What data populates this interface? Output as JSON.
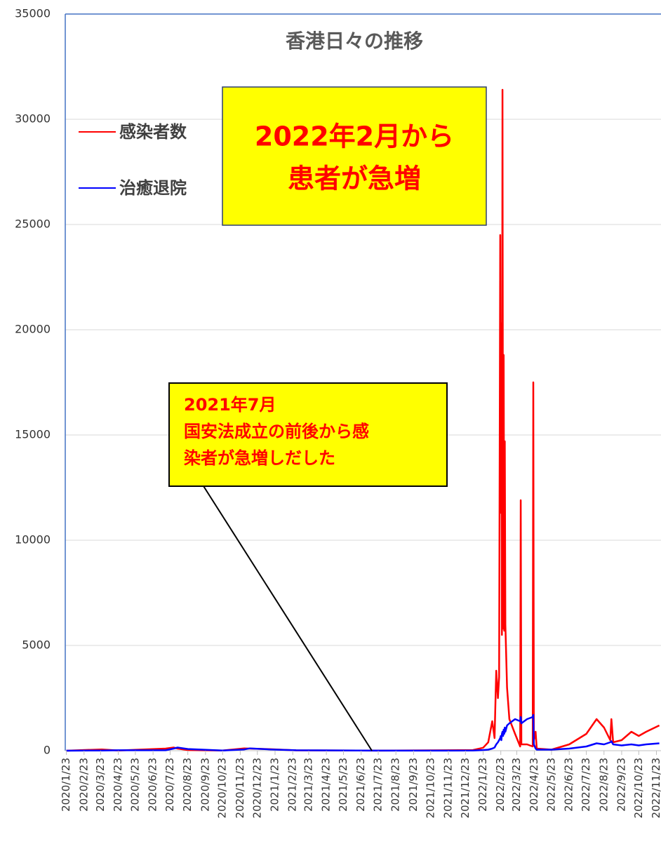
{
  "chart_data": {
    "type": "line",
    "title": "香港日々の推移",
    "x": [
      "2020/1/23",
      "2020/3/25",
      "2020/4/23",
      "2020/7/15",
      "2020/7/29",
      "2020/8/5",
      "2020/8/23",
      "2020/10/23",
      "2020/11/30",
      "2020/12/10",
      "2021/1/15",
      "2021/3/1",
      "2021/7/23",
      "2022/1/5",
      "2022/1/23",
      "2022/2/1",
      "2022/2/8",
      "2022/2/12",
      "2022/2/15",
      "2022/2/18",
      "2022/2/20",
      "2022/2/22",
      "2022/2/23",
      "2022/2/24",
      "2022/2/25",
      "2022/2/26",
      "2022/2/27",
      "2022/2/28",
      "2022/3/1",
      "2022/3/2",
      "2022/3/3",
      "2022/3/6",
      "2022/3/10",
      "2022/3/20",
      "2022/3/29",
      "2022/3/30",
      "2022/3/31",
      "2022/4/10",
      "2022/4/20",
      "2022/4/21",
      "2022/4/22",
      "2022/4/25",
      "2022/4/27",
      "2022/5/23",
      "2022/6/23",
      "2022/7/23",
      "2022/8/10",
      "2022/8/23",
      "2022/9/3",
      "2022/9/5",
      "2022/9/8",
      "2022/9/23",
      "2022/10/10",
      "2022/10/23",
      "2022/11/5",
      "2022/11/28"
    ],
    "series": [
      {
        "name": "感染者数",
        "color": "#ff0000",
        "values": [
          0,
          60,
          5,
          100,
          150,
          100,
          30,
          10,
          110,
          100,
          70,
          15,
          2,
          30,
          140,
          400,
          1400,
          600,
          3800,
          2500,
          3500,
          24500,
          11300,
          20300,
          5500,
          31400,
          5800,
          18800,
          5700,
          14700,
          6000,
          3000,
          1500,
          800,
          200,
          11900,
          300,
          300,
          200,
          17500,
          500,
          900,
          100,
          50,
          300,
          800,
          1500,
          1100,
          500,
          1500,
          400,
          500,
          900,
          700,
          900,
          1200
        ]
      },
      {
        "name": "治癒退院",
        "color": "#0000ff",
        "values": [
          0,
          10,
          20,
          20,
          100,
          150,
          80,
          10,
          60,
          110,
          60,
          20,
          2,
          5,
          30,
          50,
          100,
          150,
          300,
          400,
          500,
          600,
          700,
          500,
          800,
          900,
          700,
          1000,
          800,
          1100,
          900,
          1200,
          1300,
          1500,
          1400,
          1600,
          1300,
          1500,
          1600,
          1700,
          300,
          100,
          50,
          50,
          100,
          200,
          350,
          300,
          400,
          450,
          300,
          250,
          300,
          250,
          300,
          350
        ]
      }
    ],
    "xlim": [
      "2020/1/21",
      "2022/12/1"
    ],
    "xticks": [
      "2020/1/23",
      "2020/2/23",
      "2020/3/23",
      "2020/4/23",
      "2020/5/23",
      "2020/6/23",
      "2020/7/23",
      "2020/8/23",
      "2020/9/23",
      "2020/10/23",
      "2020/11/23",
      "2020/12/23",
      "2021/1/23",
      "2021/2/23",
      "2021/3/23",
      "2021/4/23",
      "2021/5/23",
      "2021/6/23",
      "2021/7/23",
      "2021/8/23",
      "2021/9/23",
      "2021/10/23",
      "2021/11/23",
      "2021/12/23",
      "2022/1/23",
      "2022/2/23",
      "2022/3/23",
      "2022/4/23",
      "2022/5/23",
      "2022/6/23",
      "2022/7/23",
      "2022/8/23",
      "2022/9/23",
      "2022/10/23",
      "2022/11/23"
    ],
    "ylim": [
      0,
      35000
    ],
    "yticks": [
      0,
      5000,
      10000,
      15000,
      20000,
      25000,
      30000,
      35000
    ],
    "grid": true,
    "annotations": [
      {
        "lines": [
          "2022年2月から",
          "患者が急増"
        ]
      },
      {
        "lines": [
          "2021年7月",
          "国安法成立の前後から感",
          "染者が急増しだした"
        ]
      }
    ]
  }
}
